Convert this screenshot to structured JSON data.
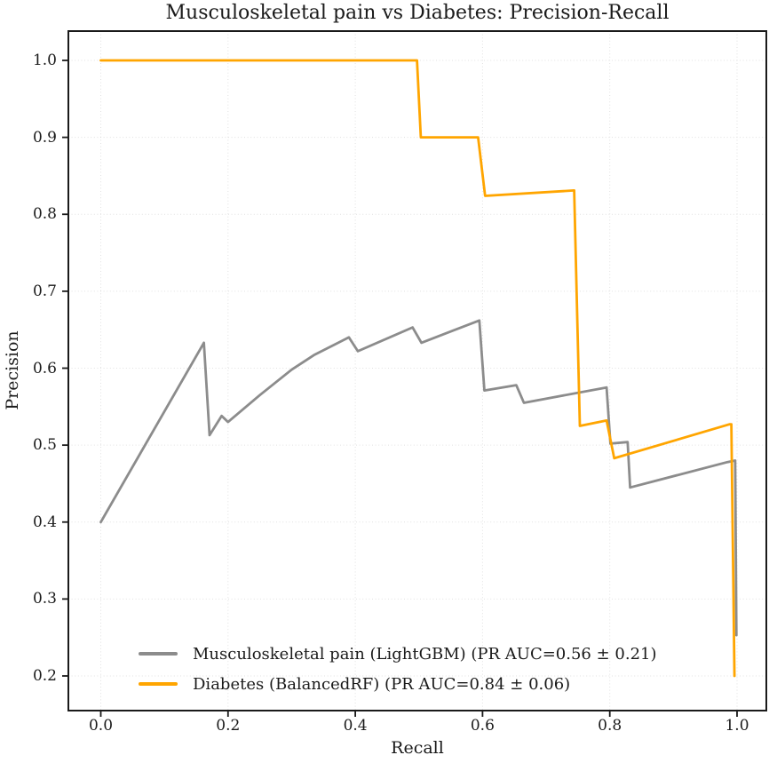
{
  "figure": {
    "title": "Musculoskeletal pain vs Diabetes: Precision-Recall"
  },
  "chart_data": {
    "type": "line",
    "title": "Musculoskeletal pain vs Diabetes: Precision-Recall",
    "xlabel": "Recall",
    "ylabel": "Precision",
    "xlim": [
      -0.05,
      1.045
    ],
    "ylim": [
      0.155,
      1.038
    ],
    "x_ticks": [
      0.0,
      0.2,
      0.4,
      0.6,
      0.8,
      1.0
    ],
    "x_tick_labels": [
      "0.0",
      "0.2",
      "0.4",
      "0.6",
      "0.8",
      "1.0"
    ],
    "y_ticks": [
      0.2,
      0.3,
      0.4,
      0.5,
      0.6,
      0.7,
      0.8,
      0.9,
      1.0
    ],
    "y_tick_labels": [
      "0.2",
      "0.3",
      "0.4",
      "0.5",
      "0.6",
      "0.7",
      "0.8",
      "0.9",
      "1.0"
    ],
    "grid": true,
    "grid_line_style": "dotted",
    "grid_color": "#c9c9c9",
    "axes_edge_color": "#1a1a1a",
    "legend_position": "lower-center-inside",
    "series": [
      {
        "id": "musculoskeletal-pain",
        "name": "Musculoskeletal pain (LightGBM)",
        "legend_label": "Musculoskeletal pain (LightGBM) (PR AUC=0.56 ± 0.21)",
        "pr_auc": "0.56 ± 0.21",
        "color": "#8c8c8c",
        "points": [
          [
            0.0,
            0.4
          ],
          [
            0.162,
            0.633
          ],
          [
            0.171,
            0.513
          ],
          [
            0.19,
            0.538
          ],
          [
            0.2,
            0.53
          ],
          [
            0.25,
            0.565
          ],
          [
            0.3,
            0.598
          ],
          [
            0.335,
            0.617
          ],
          [
            0.39,
            0.64
          ],
          [
            0.404,
            0.622
          ],
          [
            0.49,
            0.653
          ],
          [
            0.504,
            0.633
          ],
          [
            0.595,
            0.662
          ],
          [
            0.603,
            0.571
          ],
          [
            0.653,
            0.578
          ],
          [
            0.665,
            0.555
          ],
          [
            0.795,
            0.575
          ],
          [
            0.801,
            0.502
          ],
          [
            0.828,
            0.504
          ],
          [
            0.832,
            0.445
          ],
          [
            0.985,
            0.478
          ],
          [
            0.997,
            0.48
          ],
          [
            0.999,
            0.253
          ]
        ]
      },
      {
        "id": "diabetes",
        "name": "Diabetes (BalancedRF)",
        "legend_label": "Diabetes (BalancedRF) (PR AUC=0.84 ± 0.06)",
        "pr_auc": "0.84 ± 0.06",
        "color": "#FFA500",
        "points": [
          [
            0.0,
            1.0
          ],
          [
            0.497,
            1.0
          ],
          [
            0.503,
            0.9
          ],
          [
            0.593,
            0.9
          ],
          [
            0.604,
            0.824
          ],
          [
            0.744,
            0.831
          ],
          [
            0.753,
            0.525
          ],
          [
            0.795,
            0.532
          ],
          [
            0.807,
            0.483
          ],
          [
            0.988,
            0.527
          ],
          [
            0.991,
            0.527
          ],
          [
            0.996,
            0.2
          ]
        ]
      }
    ]
  }
}
